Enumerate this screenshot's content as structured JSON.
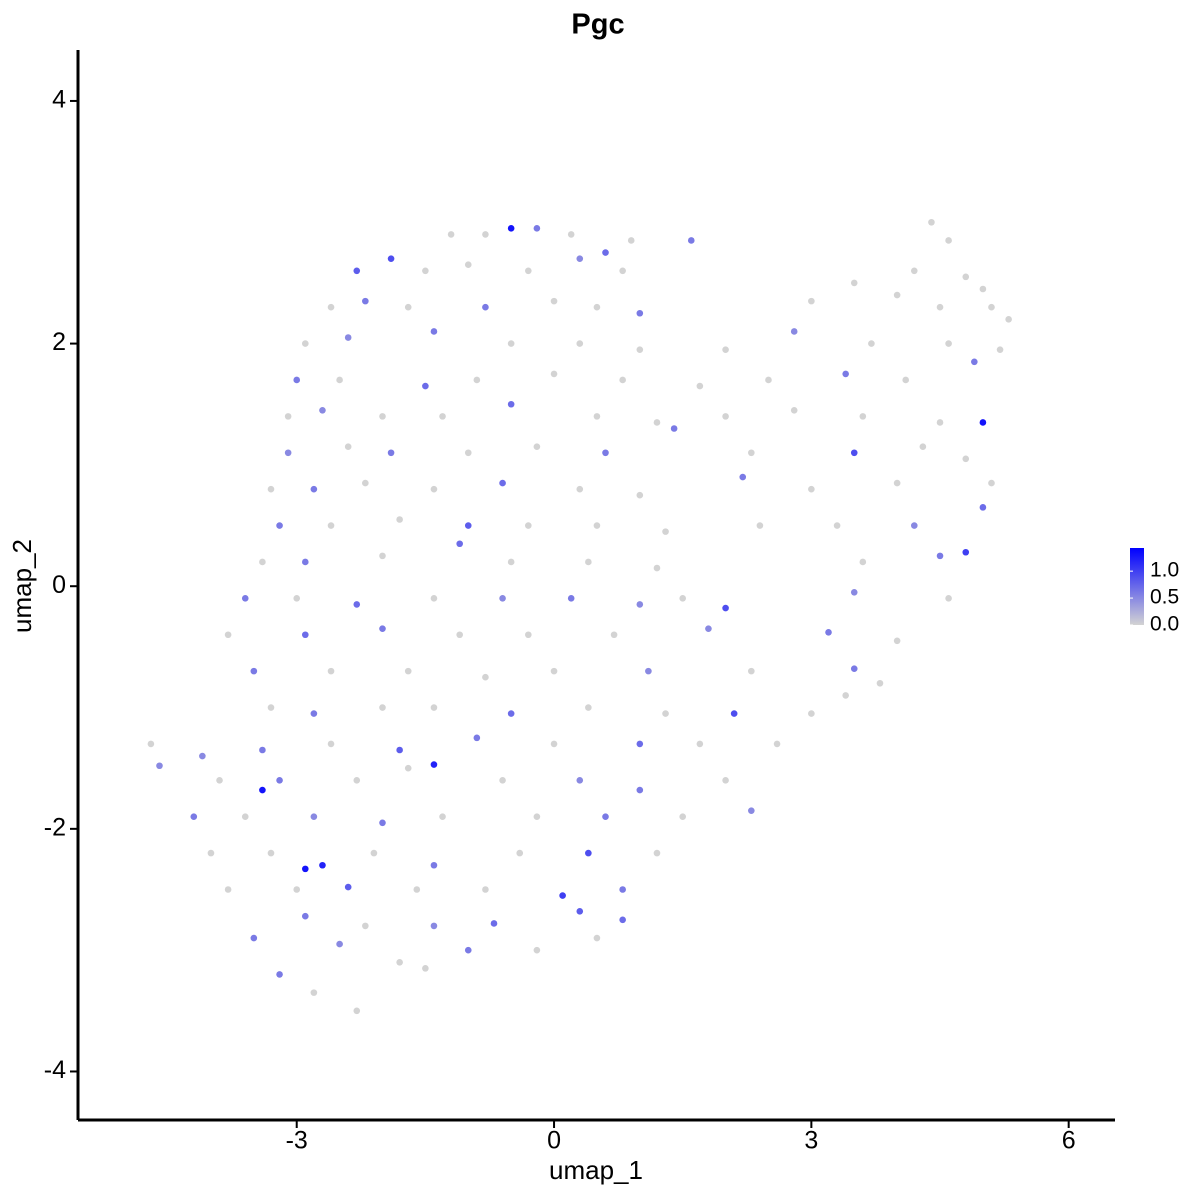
{
  "chart_data": {
    "type": "scatter",
    "title": "Pgc",
    "x_label": "umap_1",
    "y_label": "umap_2",
    "xlim": [
      -5.55,
      6.54
    ],
    "ylim": [
      -4.4,
      4.42
    ],
    "xticks": [
      -3,
      0,
      3,
      6
    ],
    "yticks": [
      -4,
      -2,
      0,
      2,
      4
    ],
    "color_scale": {
      "low": "#d3d3d3",
      "high": "#0000ff",
      "lim": [
        0,
        1.43
      ],
      "ticks": [
        {
          "value": 0,
          "label": "0.0"
        },
        0.5,
        {
          "value": 1,
          "label": "1.0"
        }
      ]
    },
    "points": [
      {
        "x": -1.2,
        "y": 2.9,
        "value": 0
      },
      {
        "x": -0.8,
        "y": 2.9,
        "value": 0
      },
      {
        "x": -0.5,
        "y": 2.95,
        "value": 1.3
      },
      {
        "x": -0.2,
        "y": 2.95,
        "value": 0.6
      },
      {
        "x": 0.2,
        "y": 2.9,
        "value": 0
      },
      {
        "x": 0.6,
        "y": 2.75,
        "value": 0.7
      },
      {
        "x": 0.9,
        "y": 2.85,
        "value": 0
      },
      {
        "x": 1.6,
        "y": 2.85,
        "value": 0.6
      },
      {
        "x": 4.4,
        "y": 3.0,
        "value": 0
      },
      {
        "x": 4.6,
        "y": 2.85,
        "value": 0
      },
      {
        "x": -2.3,
        "y": 2.6,
        "value": 0.8
      },
      {
        "x": -1.9,
        "y": 2.7,
        "value": 0.9
      },
      {
        "x": -1.5,
        "y": 2.6,
        "value": 0
      },
      {
        "x": -1.0,
        "y": 2.65,
        "value": 0
      },
      {
        "x": -0.3,
        "y": 2.6,
        "value": 0
      },
      {
        "x": 0.3,
        "y": 2.7,
        "value": 0.5
      },
      {
        "x": 0.8,
        "y": 2.6,
        "value": 0
      },
      {
        "x": 4.2,
        "y": 2.6,
        "value": 0
      },
      {
        "x": 4.8,
        "y": 2.55,
        "value": 0
      },
      {
        "x": 5.0,
        "y": 2.45,
        "value": 0
      },
      {
        "x": -2.6,
        "y": 2.3,
        "value": 0
      },
      {
        "x": -2.2,
        "y": 2.35,
        "value": 0.6
      },
      {
        "x": -1.7,
        "y": 2.3,
        "value": 0
      },
      {
        "x": -0.8,
        "y": 2.3,
        "value": 0.6
      },
      {
        "x": 0,
        "y": 2.35,
        "value": 0
      },
      {
        "x": 0.5,
        "y": 2.3,
        "value": 0
      },
      {
        "x": 1.0,
        "y": 2.25,
        "value": 0.6
      },
      {
        "x": 3.0,
        "y": 2.35,
        "value": 0
      },
      {
        "x": 3.5,
        "y": 2.5,
        "value": 0
      },
      {
        "x": 4.0,
        "y": 2.4,
        "value": 0
      },
      {
        "x": 4.5,
        "y": 2.3,
        "value": 0
      },
      {
        "x": 5.1,
        "y": 2.3,
        "value": 0
      },
      {
        "x": 5.3,
        "y": 2.2,
        "value": 0
      },
      {
        "x": -2.9,
        "y": 2.0,
        "value": 0
      },
      {
        "x": -2.4,
        "y": 2.05,
        "value": 0.5
      },
      {
        "x": -1.4,
        "y": 2.1,
        "value": 0.6
      },
      {
        "x": -0.5,
        "y": 2.0,
        "value": 0
      },
      {
        "x": 0.3,
        "y": 2.0,
        "value": 0
      },
      {
        "x": 1.0,
        "y": 1.95,
        "value": 0
      },
      {
        "x": 2.0,
        "y": 1.95,
        "value": 0
      },
      {
        "x": 2.8,
        "y": 2.1,
        "value": 0.5
      },
      {
        "x": 3.7,
        "y": 2.0,
        "value": 0
      },
      {
        "x": 4.6,
        "y": 2.0,
        "value": 0
      },
      {
        "x": 5.2,
        "y": 1.95,
        "value": 0
      },
      {
        "x": -3.0,
        "y": 1.7,
        "value": 0.6
      },
      {
        "x": -2.5,
        "y": 1.7,
        "value": 0
      },
      {
        "x": -1.5,
        "y": 1.65,
        "value": 0.7
      },
      {
        "x": -0.9,
        "y": 1.7,
        "value": 0
      },
      {
        "x": 0,
        "y": 1.75,
        "value": 0
      },
      {
        "x": 0.8,
        "y": 1.7,
        "value": 0
      },
      {
        "x": 1.7,
        "y": 1.65,
        "value": 0
      },
      {
        "x": 2.5,
        "y": 1.7,
        "value": 0
      },
      {
        "x": 3.4,
        "y": 1.75,
        "value": 0.6
      },
      {
        "x": 4.1,
        "y": 1.7,
        "value": 0
      },
      {
        "x": 4.9,
        "y": 1.85,
        "value": 0.6
      },
      {
        "x": -3.1,
        "y": 1.4,
        "value": 0
      },
      {
        "x": -2.7,
        "y": 1.45,
        "value": 0.5
      },
      {
        "x": -2.0,
        "y": 1.4,
        "value": 0
      },
      {
        "x": -1.3,
        "y": 1.4,
        "value": 0
      },
      {
        "x": -0.5,
        "y": 1.5,
        "value": 0.7
      },
      {
        "x": 0.5,
        "y": 1.4,
        "value": 0
      },
      {
        "x": 1.2,
        "y": 1.35,
        "value": 0
      },
      {
        "x": 2.0,
        "y": 1.4,
        "value": 0
      },
      {
        "x": 2.8,
        "y": 1.45,
        "value": 0
      },
      {
        "x": 3.6,
        "y": 1.4,
        "value": 0
      },
      {
        "x": 4.5,
        "y": 1.35,
        "value": 0
      },
      {
        "x": 5.0,
        "y": 1.35,
        "value": 1.3
      },
      {
        "x": -3.1,
        "y": 1.1,
        "value": 0.5
      },
      {
        "x": -2.4,
        "y": 1.15,
        "value": 0
      },
      {
        "x": -1.9,
        "y": 1.1,
        "value": 0.6
      },
      {
        "x": -1.0,
        "y": 1.1,
        "value": 0
      },
      {
        "x": -0.2,
        "y": 1.15,
        "value": 0
      },
      {
        "x": 0.6,
        "y": 1.1,
        "value": 0.6
      },
      {
        "x": 1.4,
        "y": 1.3,
        "value": 0.6
      },
      {
        "x": 2.3,
        "y": 1.1,
        "value": 0
      },
      {
        "x": 3.5,
        "y": 1.1,
        "value": 0.9
      },
      {
        "x": 4.3,
        "y": 1.15,
        "value": 0
      },
      {
        "x": 4.8,
        "y": 1.05,
        "value": 0
      },
      {
        "x": -3.3,
        "y": 0.8,
        "value": 0
      },
      {
        "x": -2.8,
        "y": 0.8,
        "value": 0.6
      },
      {
        "x": -2.2,
        "y": 0.85,
        "value": 0
      },
      {
        "x": -1.4,
        "y": 0.8,
        "value": 0
      },
      {
        "x": -0.6,
        "y": 0.85,
        "value": 0.7
      },
      {
        "x": 0.3,
        "y": 0.8,
        "value": 0
      },
      {
        "x": 1.0,
        "y": 0.75,
        "value": 0
      },
      {
        "x": 2.2,
        "y": 0.9,
        "value": 0.6
      },
      {
        "x": 3.0,
        "y": 0.8,
        "value": 0
      },
      {
        "x": 4.0,
        "y": 0.85,
        "value": 0
      },
      {
        "x": 5.1,
        "y": 0.85,
        "value": 0
      },
      {
        "x": -3.2,
        "y": 0.5,
        "value": 0.6
      },
      {
        "x": -2.6,
        "y": 0.5,
        "value": 0
      },
      {
        "x": -1.8,
        "y": 0.55,
        "value": 0
      },
      {
        "x": -1.0,
        "y": 0.5,
        "value": 0.8
      },
      {
        "x": -0.3,
        "y": 0.5,
        "value": 0
      },
      {
        "x": 0.5,
        "y": 0.5,
        "value": 0
      },
      {
        "x": 1.3,
        "y": 0.45,
        "value": 0
      },
      {
        "x": 2.4,
        "y": 0.5,
        "value": 0
      },
      {
        "x": 3.3,
        "y": 0.5,
        "value": 0
      },
      {
        "x": 4.2,
        "y": 0.5,
        "value": 0.5
      },
      {
        "x": 5.0,
        "y": 0.65,
        "value": 0.7
      },
      {
        "x": -3.4,
        "y": 0.2,
        "value": 0
      },
      {
        "x": -2.9,
        "y": 0.2,
        "value": 0.6
      },
      {
        "x": -2.0,
        "y": 0.25,
        "value": 0
      },
      {
        "x": -1.1,
        "y": 0.35,
        "value": 0.7
      },
      {
        "x": -0.5,
        "y": 0.2,
        "value": 0
      },
      {
        "x": 0.4,
        "y": 0.2,
        "value": 0
      },
      {
        "x": 1.2,
        "y": 0.15,
        "value": 0
      },
      {
        "x": 3.6,
        "y": 0.2,
        "value": 0
      },
      {
        "x": 4.5,
        "y": 0.25,
        "value": 0.6
      },
      {
        "x": 4.8,
        "y": 0.28,
        "value": 1.0
      },
      {
        "x": -3.6,
        "y": -0.1,
        "value": 0.6
      },
      {
        "x": -3.0,
        "y": -0.1,
        "value": 0
      },
      {
        "x": -2.3,
        "y": -0.15,
        "value": 0.7
      },
      {
        "x": -1.4,
        "y": -0.1,
        "value": 0
      },
      {
        "x": -0.6,
        "y": -0.1,
        "value": 0.5
      },
      {
        "x": 0.2,
        "y": -0.1,
        "value": 0.6
      },
      {
        "x": 1.0,
        "y": -0.15,
        "value": 0.5
      },
      {
        "x": 1.5,
        "y": -0.1,
        "value": 0
      },
      {
        "x": 2.0,
        "y": -0.18,
        "value": 0.9
      },
      {
        "x": 3.5,
        "y": -0.05,
        "value": 0.5
      },
      {
        "x": 4.6,
        "y": -0.1,
        "value": 0
      },
      {
        "x": -3.8,
        "y": -0.4,
        "value": 0
      },
      {
        "x": -2.9,
        "y": -0.4,
        "value": 0.7
      },
      {
        "x": -2.0,
        "y": -0.35,
        "value": 0.6
      },
      {
        "x": -1.1,
        "y": -0.4,
        "value": 0
      },
      {
        "x": -0.3,
        "y": -0.4,
        "value": 0
      },
      {
        "x": 0.7,
        "y": -0.4,
        "value": 0
      },
      {
        "x": 1.8,
        "y": -0.35,
        "value": 0.5
      },
      {
        "x": 3.2,
        "y": -0.38,
        "value": 0.6
      },
      {
        "x": 4.0,
        "y": -0.45,
        "value": 0
      },
      {
        "x": -3.5,
        "y": -0.7,
        "value": 0.6
      },
      {
        "x": -2.6,
        "y": -0.7,
        "value": 0
      },
      {
        "x": -1.7,
        "y": -0.7,
        "value": 0
      },
      {
        "x": -0.8,
        "y": -0.75,
        "value": 0
      },
      {
        "x": 0,
        "y": -0.7,
        "value": 0
      },
      {
        "x": 1.1,
        "y": -0.7,
        "value": 0.5
      },
      {
        "x": 2.3,
        "y": -0.7,
        "value": 0
      },
      {
        "x": 3.5,
        "y": -0.68,
        "value": 0.6
      },
      {
        "x": 3.8,
        "y": -0.8,
        "value": 0
      },
      {
        "x": -3.3,
        "y": -1.0,
        "value": 0
      },
      {
        "x": -2.8,
        "y": -1.05,
        "value": 0.6
      },
      {
        "x": -2.0,
        "y": -1.0,
        "value": 0
      },
      {
        "x": -1.4,
        "y": -1.0,
        "value": 0
      },
      {
        "x": -0.5,
        "y": -1.05,
        "value": 0.7
      },
      {
        "x": 0.4,
        "y": -1.0,
        "value": 0
      },
      {
        "x": 1.3,
        "y": -1.05,
        "value": 0
      },
      {
        "x": 2.1,
        "y": -1.05,
        "value": 0.9
      },
      {
        "x": 3.0,
        "y": -1.05,
        "value": 0
      },
      {
        "x": 3.4,
        "y": -0.9,
        "value": 0
      },
      {
        "x": -4.7,
        "y": -1.3,
        "value": 0
      },
      {
        "x": -4.1,
        "y": -1.4,
        "value": 0.5
      },
      {
        "x": -3.4,
        "y": -1.35,
        "value": 0.6
      },
      {
        "x": -2.6,
        "y": -1.3,
        "value": 0
      },
      {
        "x": -1.8,
        "y": -1.35,
        "value": 0.8
      },
      {
        "x": -0.9,
        "y": -1.25,
        "value": 0.6
      },
      {
        "x": 0,
        "y": -1.3,
        "value": 0
      },
      {
        "x": 1.0,
        "y": -1.3,
        "value": 0.7
      },
      {
        "x": 1.7,
        "y": -1.3,
        "value": 0
      },
      {
        "x": 2.6,
        "y": -1.3,
        "value": 0
      },
      {
        "x": -4.6,
        "y": -1.48,
        "value": 0.5
      },
      {
        "x": -3.9,
        "y": -1.6,
        "value": 0
      },
      {
        "x": -3.2,
        "y": -1.6,
        "value": 0.6
      },
      {
        "x": -2.3,
        "y": -1.6,
        "value": 0
      },
      {
        "x": -1.4,
        "y": -1.47,
        "value": 1.2
      },
      {
        "x": -0.6,
        "y": -1.6,
        "value": 0
      },
      {
        "x": 0.3,
        "y": -1.6,
        "value": 0.5
      },
      {
        "x": 1.0,
        "y": -1.68,
        "value": 0.6
      },
      {
        "x": 2.0,
        "y": -1.6,
        "value": 0
      },
      {
        "x": -4.2,
        "y": -1.9,
        "value": 0.6
      },
      {
        "x": -3.6,
        "y": -1.9,
        "value": 0
      },
      {
        "x": -2.8,
        "y": -1.9,
        "value": 0.5
      },
      {
        "x": -2.0,
        "y": -1.95,
        "value": 0.6
      },
      {
        "x": -1.3,
        "y": -1.9,
        "value": 0
      },
      {
        "x": -0.2,
        "y": -1.9,
        "value": 0
      },
      {
        "x": 0.6,
        "y": -1.9,
        "value": 0.6
      },
      {
        "x": 1.5,
        "y": -1.9,
        "value": 0
      },
      {
        "x": 2.3,
        "y": -1.85,
        "value": 0.5
      },
      {
        "x": -4.0,
        "y": -2.2,
        "value": 0
      },
      {
        "x": -3.3,
        "y": -2.2,
        "value": 0
      },
      {
        "x": -2.7,
        "y": -2.3,
        "value": 1.2
      },
      {
        "x": -2.1,
        "y": -2.2,
        "value": 0
      },
      {
        "x": -1.4,
        "y": -2.3,
        "value": 0.6
      },
      {
        "x": -0.4,
        "y": -2.2,
        "value": 0
      },
      {
        "x": 0.4,
        "y": -2.2,
        "value": 0.9
      },
      {
        "x": 1.2,
        "y": -2.2,
        "value": 0
      },
      {
        "x": -3.8,
        "y": -2.5,
        "value": 0
      },
      {
        "x": -3.0,
        "y": -2.5,
        "value": 0
      },
      {
        "x": -2.4,
        "y": -2.48,
        "value": 0.8
      },
      {
        "x": -1.6,
        "y": -2.5,
        "value": 0
      },
      {
        "x": -0.8,
        "y": -2.5,
        "value": 0
      },
      {
        "x": 0.1,
        "y": -2.55,
        "value": 1.0
      },
      {
        "x": 0.8,
        "y": -2.5,
        "value": 0.6
      },
      {
        "x": -3.5,
        "y": -2.9,
        "value": 0.6
      },
      {
        "x": -2.9,
        "y": -2.72,
        "value": 0.6
      },
      {
        "x": -2.2,
        "y": -2.8,
        "value": 0
      },
      {
        "x": -1.4,
        "y": -2.8,
        "value": 0.5
      },
      {
        "x": -0.7,
        "y": -2.78,
        "value": 0.7
      },
      {
        "x": 0.3,
        "y": -2.68,
        "value": 0.8
      },
      {
        "x": 0.8,
        "y": -2.75,
        "value": 0.7
      },
      {
        "x": -3.2,
        "y": -3.2,
        "value": 0.6
      },
      {
        "x": -2.5,
        "y": -2.95,
        "value": 0.5
      },
      {
        "x": -1.8,
        "y": -3.1,
        "value": 0
      },
      {
        "x": -1.0,
        "y": -3.0,
        "value": 0.6
      },
      {
        "x": -0.2,
        "y": -3.0,
        "value": 0
      },
      {
        "x": 0.5,
        "y": -2.9,
        "value": 0
      },
      {
        "x": -2.8,
        "y": -3.35,
        "value": 0
      },
      {
        "x": -2.3,
        "y": -3.5,
        "value": 0
      },
      {
        "x": -1.5,
        "y": -3.15,
        "value": 0
      },
      {
        "x": -3.4,
        "y": -1.68,
        "value": 1.3
      },
      {
        "x": -2.9,
        "y": -2.33,
        "value": 1.3
      },
      {
        "x": -1.7,
        "y": -1.5,
        "value": 0
      }
    ]
  }
}
